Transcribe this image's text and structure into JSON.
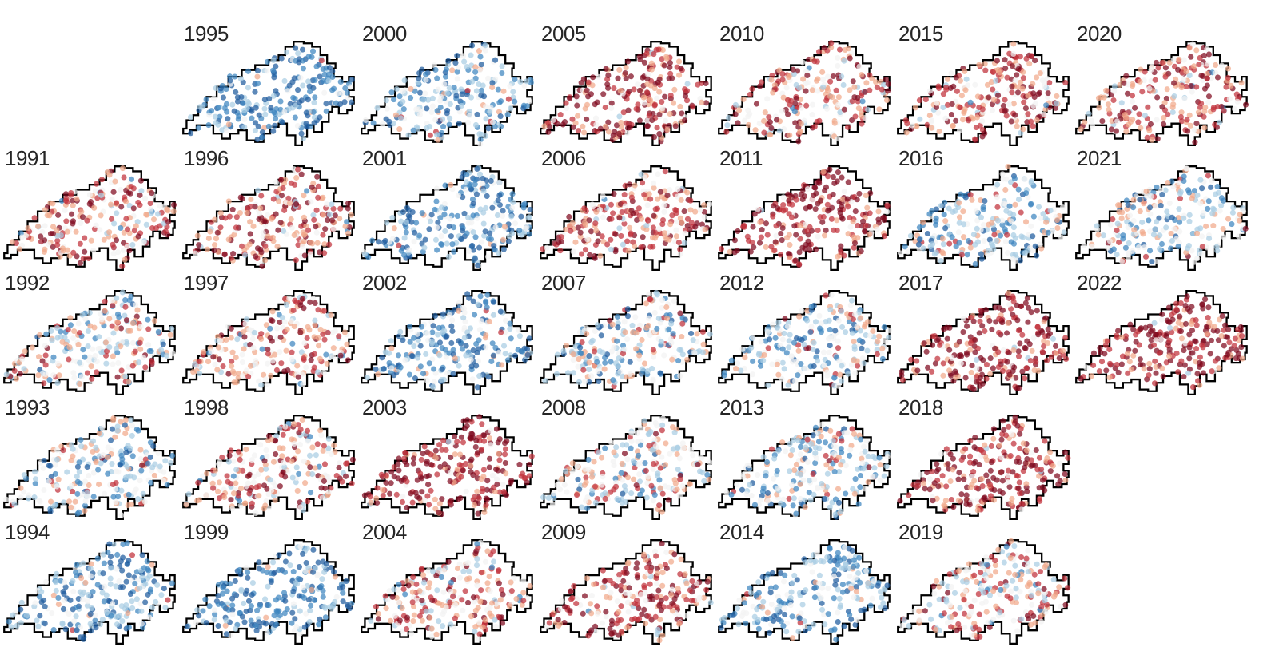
{
  "chart_data": {
    "type": "map-small-multiples",
    "region": "Switzerland",
    "layout": "5 rows x 7 columns, year ascending down each column",
    "colormap": "diverging red-white-blue",
    "colors": {
      "strong_red": "#7f0a1f",
      "red": "#c0313a",
      "light_red": "#f1a98a",
      "neutral": "#f2f2f2",
      "light_blue": "#a9cde3",
      "blue": "#3d85bf",
      "strong_blue": "#1f5c9e",
      "outline": "#000000"
    },
    "panels": [
      {
        "year": "1995",
        "col": 1,
        "row": 0,
        "tendency": -0.7
      },
      {
        "year": "2000",
        "col": 2,
        "row": 0,
        "tendency": -0.4
      },
      {
        "year": "2005",
        "col": 3,
        "row": 0,
        "tendency": 0.75
      },
      {
        "year": "2010",
        "col": 4,
        "row": 0,
        "tendency": 0.4
      },
      {
        "year": "2015",
        "col": 5,
        "row": 0,
        "tendency": 0.55
      },
      {
        "year": "2020",
        "col": 6,
        "row": 0,
        "tendency": 0.5
      },
      {
        "year": "1991",
        "col": 0,
        "row": 1,
        "tendency": 0.4
      },
      {
        "year": "1996",
        "col": 1,
        "row": 1,
        "tendency": 0.55
      },
      {
        "year": "2001",
        "col": 2,
        "row": 1,
        "tendency": -0.6
      },
      {
        "year": "2006",
        "col": 3,
        "row": 1,
        "tendency": 0.55
      },
      {
        "year": "2011",
        "col": 4,
        "row": 1,
        "tendency": 0.9
      },
      {
        "year": "2016",
        "col": 5,
        "row": 1,
        "tendency": -0.25
      },
      {
        "year": "2021",
        "col": 6,
        "row": 1,
        "tendency": -0.2
      },
      {
        "year": "1992",
        "col": 0,
        "row": 2,
        "tendency": 0.05
      },
      {
        "year": "1997",
        "col": 1,
        "row": 2,
        "tendency": 0.3
      },
      {
        "year": "2002",
        "col": 2,
        "row": 2,
        "tendency": -0.5
      },
      {
        "year": "2007",
        "col": 3,
        "row": 2,
        "tendency": -0.2
      },
      {
        "year": "2012",
        "col": 4,
        "row": 2,
        "tendency": -0.15
      },
      {
        "year": "2017",
        "col": 5,
        "row": 2,
        "tendency": 0.9
      },
      {
        "year": "2022",
        "col": 6,
        "row": 2,
        "tendency": 0.9
      },
      {
        "year": "1993",
        "col": 0,
        "row": 3,
        "tendency": -0.15
      },
      {
        "year": "1998",
        "col": 1,
        "row": 3,
        "tendency": 0.3
      },
      {
        "year": "2003",
        "col": 2,
        "row": 3,
        "tendency": 0.85
      },
      {
        "year": "2008",
        "col": 3,
        "row": 3,
        "tendency": 0.1
      },
      {
        "year": "2013",
        "col": 4,
        "row": 3,
        "tendency": -0.2
      },
      {
        "year": "2018",
        "col": 5,
        "row": 3,
        "tendency": 0.75
      },
      {
        "year": "1994",
        "col": 0,
        "row": 4,
        "tendency": -0.55
      },
      {
        "year": "1999",
        "col": 1,
        "row": 4,
        "tendency": -0.65
      },
      {
        "year": "2004",
        "col": 2,
        "row": 4,
        "tendency": 0.35
      },
      {
        "year": "2009",
        "col": 3,
        "row": 4,
        "tendency": 0.6
      },
      {
        "year": "2014",
        "col": 4,
        "row": 4,
        "tendency": -0.45
      },
      {
        "year": "2019",
        "col": 5,
        "row": 4,
        "tendency": 0.15
      }
    ]
  }
}
